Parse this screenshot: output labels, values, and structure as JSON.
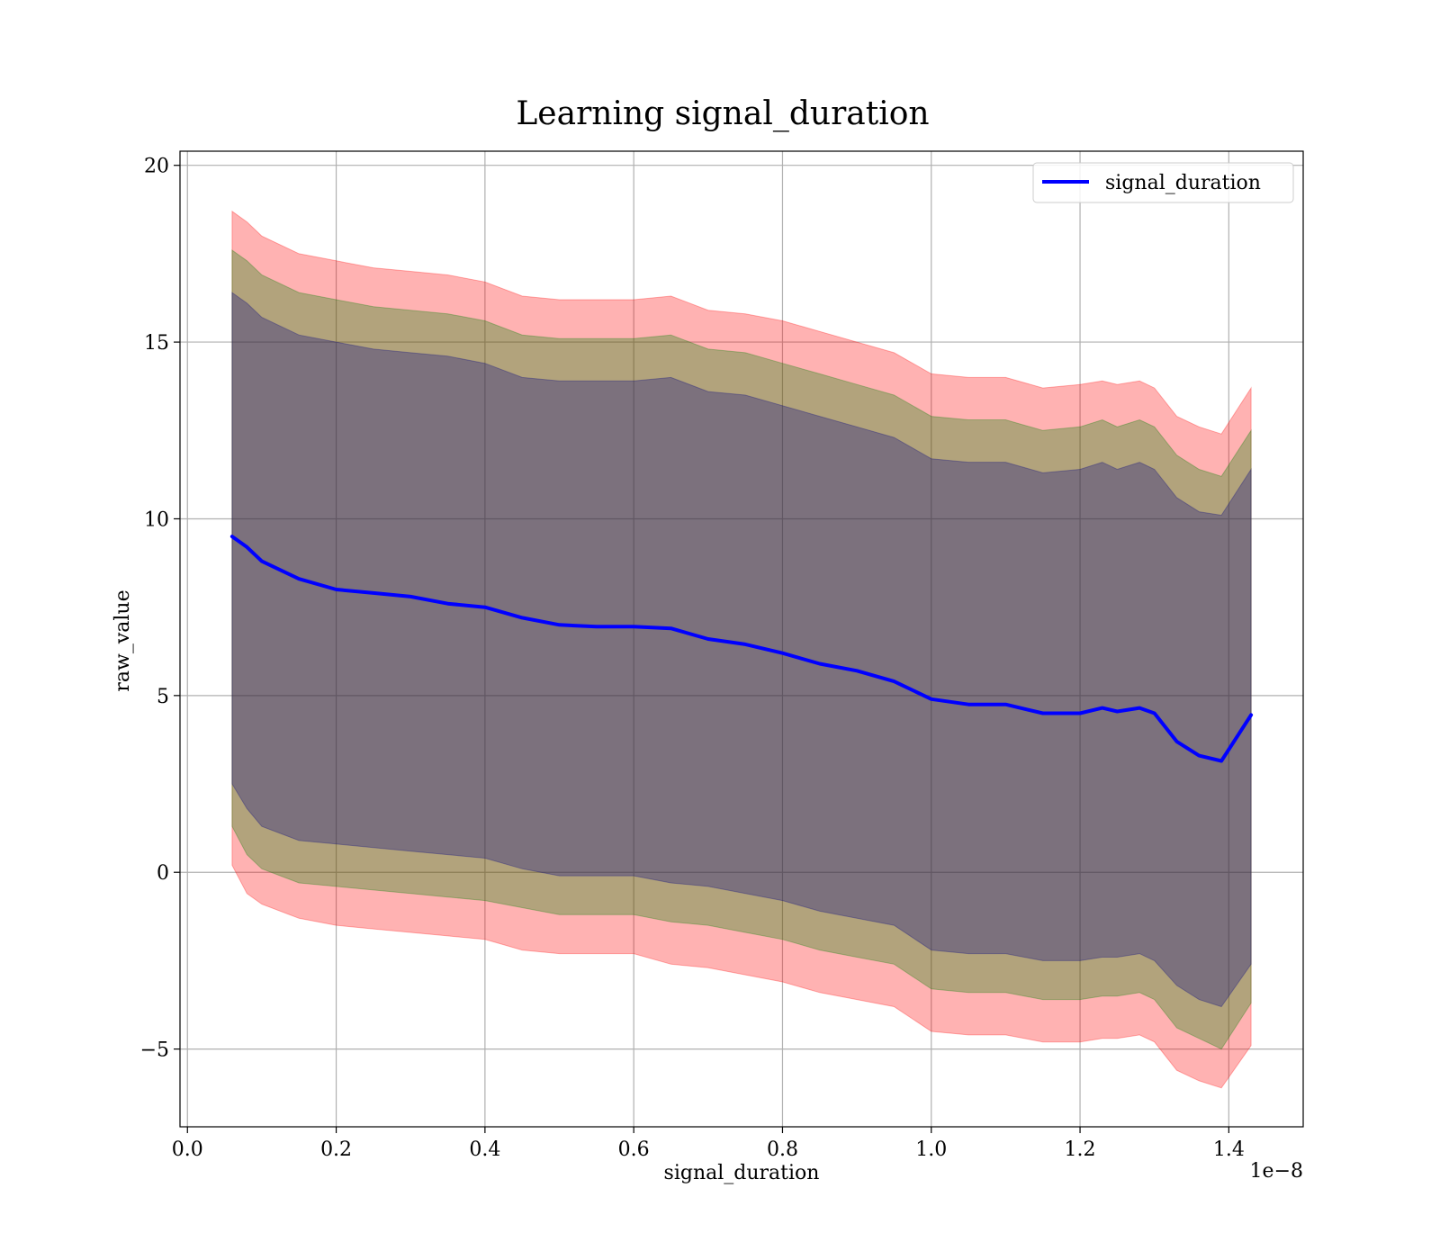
{
  "chart_data": {
    "type": "line",
    "title": "Learning signal_duration",
    "xlabel": "signal_duration",
    "ylabel": "raw_value",
    "x_offset_label": "1e−8",
    "xlim": [
      -0.01,
      1.5
    ],
    "ylim": [
      -7.2,
      20.4
    ],
    "xticks": [
      0.0,
      0.2,
      0.4,
      0.6,
      0.8,
      1.0,
      1.2,
      1.4
    ],
    "xtick_labels": [
      "0.0",
      "0.2",
      "0.4",
      "0.6",
      "0.8",
      "1.0",
      "1.2",
      "1.4"
    ],
    "yticks": [
      -5,
      0,
      5,
      10,
      15,
      20
    ],
    "ytick_labels": [
      "−5",
      "0",
      "5",
      "10",
      "15",
      "20"
    ],
    "grid": true,
    "legend_position": "top-right",
    "x": [
      0.06,
      0.08,
      0.1,
      0.15,
      0.2,
      0.25,
      0.3,
      0.35,
      0.4,
      0.45,
      0.5,
      0.55,
      0.6,
      0.65,
      0.7,
      0.75,
      0.8,
      0.85,
      0.9,
      0.95,
      1.0,
      1.05,
      1.1,
      1.15,
      1.2,
      1.23,
      1.25,
      1.28,
      1.3,
      1.33,
      1.36,
      1.39,
      1.43
    ],
    "series": [
      {
        "name": "signal_duration",
        "color": "#0000ff",
        "values": [
          9.5,
          9.2,
          8.8,
          8.3,
          8.0,
          7.9,
          7.8,
          7.6,
          7.5,
          7.2,
          7.0,
          6.95,
          6.95,
          6.9,
          6.6,
          6.45,
          6.2,
          5.9,
          5.7,
          5.4,
          4.9,
          4.75,
          4.75,
          4.5,
          4.5,
          4.65,
          4.55,
          4.65,
          4.5,
          3.7,
          3.3,
          3.15,
          4.45
        ]
      }
    ],
    "bands": [
      {
        "color": "#ff0000",
        "opacity": 0.3,
        "lower": [
          0.2,
          -0.6,
          -0.9,
          -1.3,
          -1.5,
          -1.6,
          -1.7,
          -1.8,
          -1.9,
          -2.2,
          -2.3,
          -2.3,
          -2.3,
          -2.6,
          -2.7,
          -2.9,
          -3.1,
          -3.4,
          -3.6,
          -3.8,
          -4.5,
          -4.6,
          -4.6,
          -4.8,
          -4.8,
          -4.7,
          -4.7,
          -4.6,
          -4.8,
          -5.6,
          -5.9,
          -6.1,
          -4.9
        ],
        "upper": [
          18.7,
          18.4,
          18.0,
          17.5,
          17.3,
          17.1,
          17.0,
          16.9,
          16.7,
          16.3,
          16.2,
          16.2,
          16.2,
          16.3,
          15.9,
          15.8,
          15.6,
          15.3,
          15.0,
          14.7,
          14.1,
          14.0,
          14.0,
          13.7,
          13.8,
          13.9,
          13.8,
          13.9,
          13.7,
          12.9,
          12.6,
          12.4,
          13.7
        ]
      },
      {
        "color": "#008000",
        "opacity": 0.3,
        "lower": [
          1.3,
          0.5,
          0.1,
          -0.3,
          -0.4,
          -0.5,
          -0.6,
          -0.7,
          -0.8,
          -1.0,
          -1.2,
          -1.2,
          -1.2,
          -1.4,
          -1.5,
          -1.7,
          -1.9,
          -2.2,
          -2.4,
          -2.6,
          -3.3,
          -3.4,
          -3.4,
          -3.6,
          -3.6,
          -3.5,
          -3.5,
          -3.4,
          -3.6,
          -4.4,
          -4.7,
          -5.0,
          -3.7
        ],
        "upper": [
          17.6,
          17.3,
          16.9,
          16.4,
          16.2,
          16.0,
          15.9,
          15.8,
          15.6,
          15.2,
          15.1,
          15.1,
          15.1,
          15.2,
          14.8,
          14.7,
          14.4,
          14.1,
          13.8,
          13.5,
          12.9,
          12.8,
          12.8,
          12.5,
          12.6,
          12.8,
          12.6,
          12.8,
          12.6,
          11.8,
          11.4,
          11.2,
          12.5
        ]
      },
      {
        "color": "#000080",
        "opacity": 0.3,
        "lower": [
          2.5,
          1.8,
          1.3,
          0.9,
          0.8,
          0.7,
          0.6,
          0.5,
          0.4,
          0.1,
          -0.1,
          -0.1,
          -0.1,
          -0.3,
          -0.4,
          -0.6,
          -0.8,
          -1.1,
          -1.3,
          -1.5,
          -2.2,
          -2.3,
          -2.3,
          -2.5,
          -2.5,
          -2.4,
          -2.4,
          -2.3,
          -2.5,
          -3.2,
          -3.6,
          -3.8,
          -2.6
        ],
        "upper": [
          16.4,
          16.1,
          15.7,
          15.2,
          15.0,
          14.8,
          14.7,
          14.6,
          14.4,
          14.0,
          13.9,
          13.9,
          13.9,
          14.0,
          13.6,
          13.5,
          13.2,
          12.9,
          12.6,
          12.3,
          11.7,
          11.6,
          11.6,
          11.3,
          11.4,
          11.6,
          11.4,
          11.6,
          11.4,
          10.6,
          10.2,
          10.1,
          11.4
        ]
      }
    ]
  }
}
